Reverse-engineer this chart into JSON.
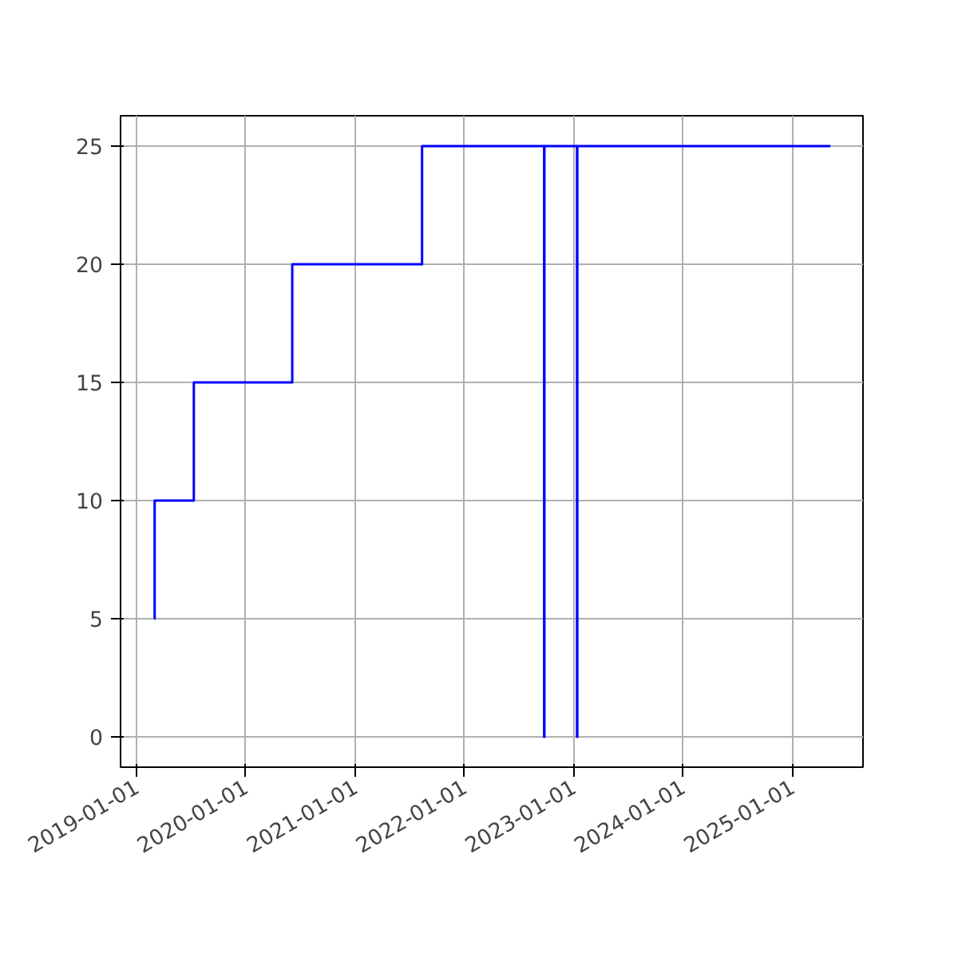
{
  "chart_data": {
    "type": "step",
    "x": [
      "2019-03-01",
      "2019-03-02",
      "2019-07-11",
      "2020-06-04",
      "2021-08-12",
      "2022-09-24",
      "2022-09-25",
      "2023-01-12",
      "2023-01-13",
      "2025-05-08"
    ],
    "series": [
      {
        "color": "#0000ff",
        "values": [
          5,
          10,
          15,
          20,
          25,
          0,
          25,
          0,
          25,
          25
        ]
      }
    ],
    "xlim": [
      "2018-11-08",
      "2025-08-25"
    ],
    "ylim": [
      -1.28,
      26.28
    ],
    "xticks": [
      "2019-01-01",
      "2020-01-01",
      "2021-01-01",
      "2022-01-01",
      "2023-01-01",
      "2024-01-01",
      "2025-01-01"
    ],
    "yticks": [
      0,
      5,
      10,
      15,
      20,
      25
    ],
    "grid": true
  }
}
